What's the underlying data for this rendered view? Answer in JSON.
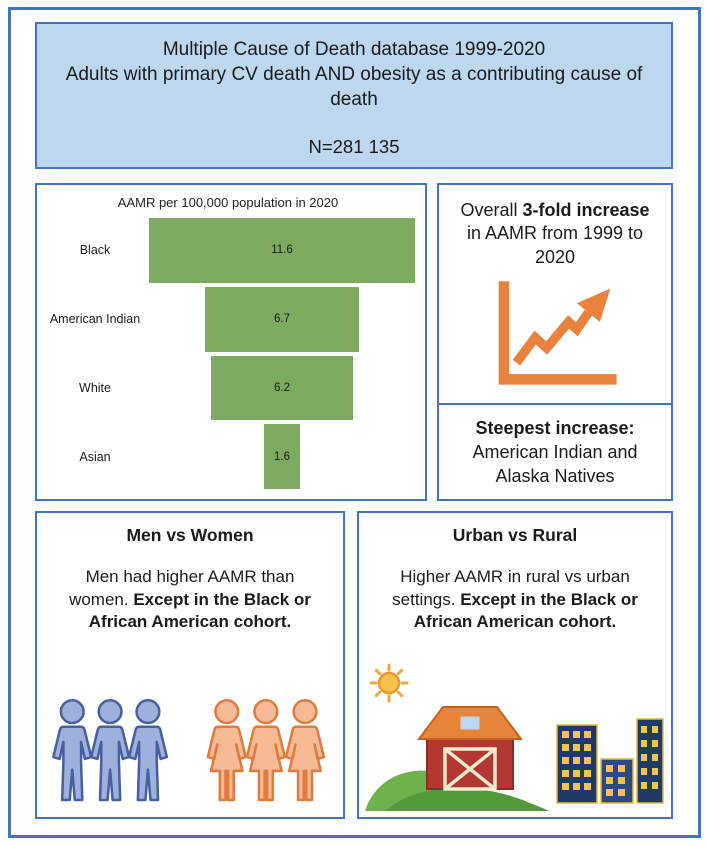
{
  "page": {
    "border_color": "#4472C4",
    "background_color": "#FFFFFF"
  },
  "header": {
    "line1": "Multiple Cause of Death database 1999-2020",
    "line2": "Adults with primary CV death AND obesity as a contributing cause of death",
    "sample_size": "N=281 135",
    "fill_color": "#BDD7EE"
  },
  "chart_data": {
    "type": "bar",
    "variant": "horizontal-funnel-centered",
    "title": "AAMR per 100,000 population in 2020",
    "categories": [
      "Black",
      "American Indian",
      "White",
      "Asian"
    ],
    "values": [
      11.6,
      6.7,
      6.2,
      1.6
    ],
    "xlim": [
      0,
      11.6
    ],
    "bar_color": "#7CAB5F",
    "value_labels": "inside-center",
    "grid": false,
    "legend": false
  },
  "increase_box": {
    "text_pre": "Overall ",
    "text_bold": "3-fold increase",
    "text_post": " in AAMR from 1999 to 2020",
    "icon": "trend-up-chart-icon",
    "icon_color": "#E8823C"
  },
  "steepest_box": {
    "heading_bold": "Steepest increase:",
    "text": "American Indian and Alaska Natives"
  },
  "men_women_box": {
    "title": "Men vs Women",
    "text_pre": "Men had higher AAMR than women. ",
    "text_bold": "Except in the Black or African American cohort.",
    "men_icon": {
      "name": "men-group-icon",
      "fill": "#9FB0DC",
      "stroke": "#47609F"
    },
    "women_icon": {
      "name": "women-group-icon",
      "fill": "#F6BA96",
      "stroke": "#E07B3E"
    }
  },
  "urban_rural_box": {
    "title": "Urban vs Rural",
    "text_pre": "Higher AAMR in rural vs urban settings. ",
    "text_bold": "Except in the Black or African American cohort.",
    "scene_icons": [
      "sun-icon",
      "hills-icon",
      "barn-icon",
      "city-buildings-icon"
    ],
    "colors": {
      "sun": "#F6C14D",
      "hills": "#6FB14A",
      "barn_body": "#B3382F",
      "barn_roof": "#E8833A",
      "buildings": "#203A66",
      "windows": "#F2C34E"
    }
  }
}
